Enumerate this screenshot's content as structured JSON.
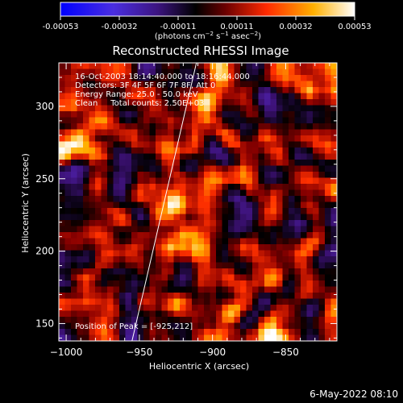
{
  "chart_data": {
    "type": "heatmap",
    "title": "Reconstructed RHESSI Image",
    "xlabel": "Heliocentric X (arcsec)",
    "ylabel": "Heliocentric Y (arcsec)",
    "xlim": [
      -1005,
      -815
    ],
    "ylim": [
      138,
      330
    ],
    "x_ticks": [
      -1000,
      -950,
      -900,
      -850
    ],
    "y_ticks": [
      150,
      200,
      250,
      300
    ],
    "colorbar": {
      "min": -0.00053,
      "max": 0.00053,
      "ticks": [
        "-0.00053",
        "-0.00032",
        "-0.00011",
        "0.00011",
        "0.00032",
        "0.00053"
      ],
      "units_html": "(photons cm<tspan baseline-shift=\"super\" font-size=\"7\">−2</tspan> s<tspan baseline-shift=\"super\" font-size=\"7\">−1</tspan> asec<tspan baseline-shift=\"super\" font-size=\"7\">−2</tspan>)"
    },
    "annotations": [
      "16-Oct-2003 18:14:40.000 to 18:16:44.000",
      "Detectors: 3F 4F 5F 6F 7F 8F, Att 0",
      "Energy Range: 25.0 - 50.0 keV",
      "Clean     Total counts: 2.50E+03"
    ],
    "peak_label": "Position of Peak = [-925,212]",
    "limb_line": {
      "points": [
        [
          -955,
          138
        ],
        [
          -911,
          330
        ]
      ]
    },
    "colors": {
      "background": "#000000",
      "colormap": [
        "#0000ff",
        "#5a2cd0",
        "#3a1070",
        "#000000",
        "#8a0000",
        "#ff3000",
        "#ffb000",
        "#ffffff"
      ]
    }
  },
  "footer": {
    "timestamp": "6-May-2022 08:10"
  }
}
